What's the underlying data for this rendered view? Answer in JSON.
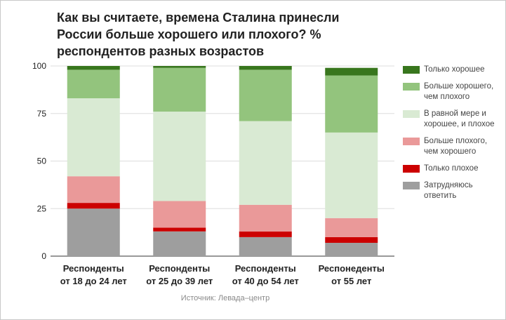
{
  "chart_data": {
    "type": "bar",
    "stacked": true,
    "title": "Как вы считаете, времена Сталина принесли России больше хорошего или плохого? % респондентов разных возрастов",
    "source": "Источник: Левада–центр",
    "categories": [
      [
        "Респонденты",
        "от 18 до 24 лет"
      ],
      [
        "Респонденты",
        "от 25 до 39 лет"
      ],
      [
        "Респонденты",
        "от 40 до 54 лет"
      ],
      [
        "Респонедeнты",
        "от 55 лет"
      ]
    ],
    "ylim": [
      0,
      100
    ],
    "yticks": [
      0,
      25,
      50,
      75,
      100
    ],
    "legend_position": "right",
    "series": [
      {
        "name": "Затрудняюсь ответить",
        "color": "#9e9e9e",
        "values": [
          25,
          13,
          10,
          7
        ]
      },
      {
        "name": "Только плохое",
        "color": "#cc0000",
        "values": [
          3,
          2,
          3,
          3
        ]
      },
      {
        "name": "Больше плохого, чем хорошего",
        "color": "#ea9999",
        "values": [
          14,
          14,
          14,
          10
        ]
      },
      {
        "name": "В равной мере и хорошее, и плохое",
        "color": "#d9ead3",
        "values": [
          41,
          47,
          44,
          45
        ]
      },
      {
        "name": "Больше хорошего, чем плохого",
        "color": "#93c47d",
        "values": [
          15,
          23,
          27,
          30
        ]
      },
      {
        "name": "Только хорошее",
        "color": "#38761d",
        "values": [
          2,
          1,
          2,
          4
        ]
      }
    ]
  }
}
